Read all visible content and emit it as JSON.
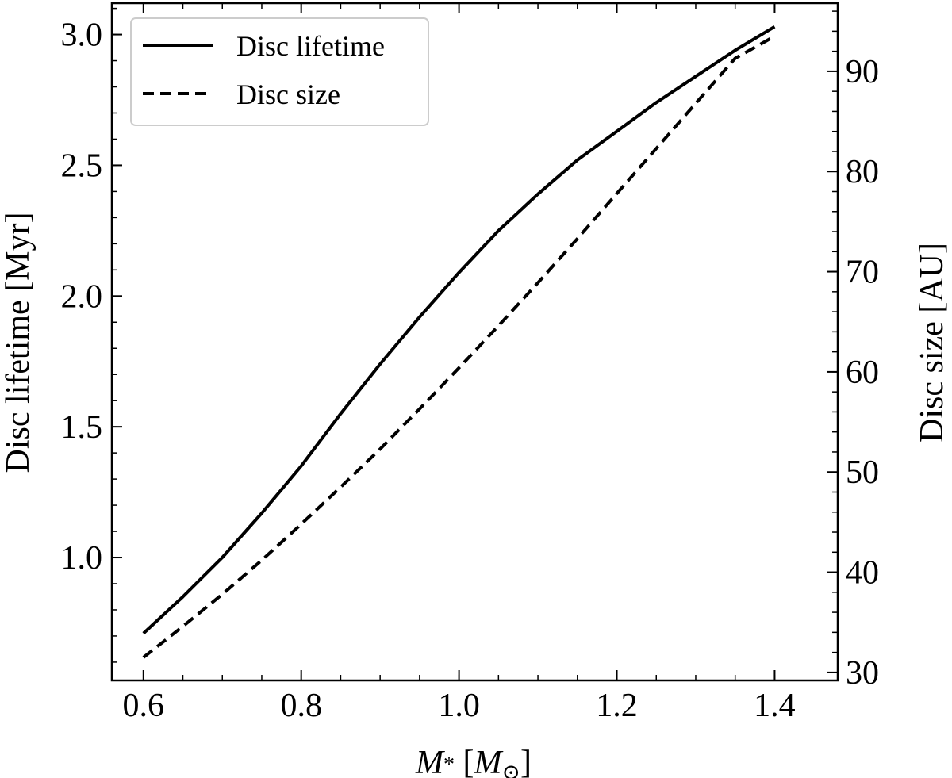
{
  "chart_data": {
    "type": "line",
    "xlabel": "M",
    "xlabel_sub": "*",
    "xlabel_unit": "M",
    "xlabel_unit_sub": "⊙",
    "ylabel": "Disc lifetime [Myr]",
    "y2label": "Disc size [AU]",
    "xlim": [
      0.56,
      1.48
    ],
    "ylim": [
      0.53,
      3.12
    ],
    "y2lim": [
      29.2,
      96.8
    ],
    "xticks": [
      "0.6",
      "0.8",
      "1.0",
      "1.2",
      "1.4"
    ],
    "yticks": [
      "1.0",
      "1.5",
      "2.0",
      "2.5",
      "3.0"
    ],
    "y2ticks": [
      "30",
      "40",
      "50",
      "60",
      "70",
      "80",
      "90"
    ],
    "legend_position": "top-left",
    "grid": false,
    "series": [
      {
        "name": "Disc lifetime",
        "axis": "left",
        "style": "solid",
        "x": [
          0.6,
          0.65,
          0.7,
          0.75,
          0.8,
          0.85,
          0.9,
          0.95,
          1.0,
          1.05,
          1.1,
          1.15,
          1.2,
          1.25,
          1.3,
          1.35,
          1.4
        ],
        "y": [
          0.71,
          0.85,
          1.0,
          1.17,
          1.35,
          1.55,
          1.74,
          1.92,
          2.09,
          2.25,
          2.39,
          2.52,
          2.63,
          2.74,
          2.84,
          2.94,
          3.03
        ]
      },
      {
        "name": "Disc size",
        "axis": "right",
        "style": "dashed",
        "x": [
          0.6,
          0.65,
          0.7,
          0.75,
          0.8,
          0.85,
          0.9,
          0.95,
          1.0,
          1.05,
          1.1,
          1.15,
          1.2,
          1.25,
          1.3,
          1.35,
          1.4
        ],
        "y": [
          31.5,
          34.6,
          37.8,
          41.2,
          44.8,
          48.5,
          52.3,
          56.3,
          60.4,
          64.6,
          68.9,
          73.3,
          77.8,
          82.3,
          86.8,
          91.3,
          93.5
        ]
      }
    ]
  }
}
